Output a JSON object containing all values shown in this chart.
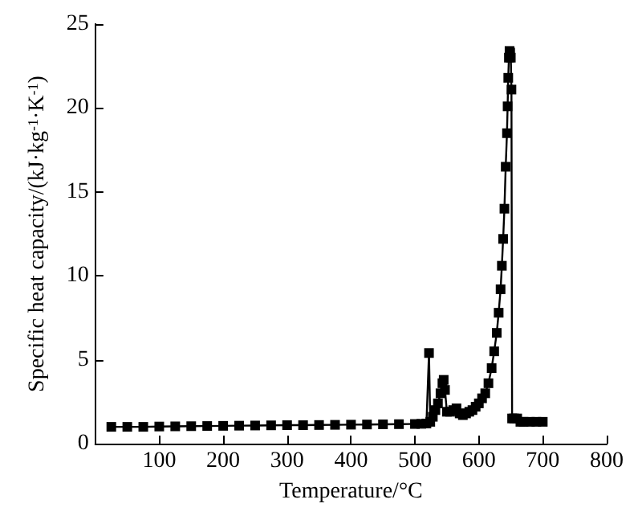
{
  "chart_data": {
    "type": "line",
    "xlabel": "Temperature/°C",
    "ylabel": "Specific heat capacity/(kJ·kg$^{-1}$·K$^{-1}$)",
    "xlim": [
      0,
      800
    ],
    "xticks": [
      100,
      200,
      300,
      400,
      500,
      600,
      700,
      800
    ],
    "ylim": [
      0,
      25
    ],
    "yticks": [
      0,
      5,
      10,
      15,
      20,
      25
    ],
    "grid": false,
    "marker": "square",
    "line_style": "solid",
    "series": [
      {
        "color": "#000000",
        "x": [
          25,
          50,
          75,
          100,
          125,
          150,
          175,
          200,
          225,
          250,
          275,
          300,
          325,
          350,
          375,
          400,
          425,
          450,
          475,
          500,
          510,
          518,
          522,
          524,
          528,
          532,
          536,
          540,
          543,
          545,
          547,
          550,
          555,
          560,
          565,
          570,
          575,
          580,
          585,
          590,
          595,
          600,
          605,
          610,
          615,
          620,
          624,
          628,
          631,
          634,
          636,
          638,
          640,
          642,
          644,
          645,
          646,
          647,
          648,
          649,
          650,
          651,
          652,
          655,
          660,
          665,
          670,
          680,
          690,
          700
        ],
        "values": [
          1.0,
          1.0,
          1.0,
          1.02,
          1.03,
          1.04,
          1.05,
          1.06,
          1.07,
          1.08,
          1.09,
          1.1,
          1.1,
          1.11,
          1.12,
          1.13,
          1.14,
          1.15,
          1.16,
          1.17,
          1.18,
          1.2,
          5.4,
          1.3,
          1.6,
          2.0,
          2.4,
          3.0,
          3.6,
          3.8,
          3.2,
          1.9,
          1.9,
          2.0,
          2.1,
          1.8,
          1.7,
          1.8,
          1.9,
          2.0,
          2.2,
          2.4,
          2.7,
          3.0,
          3.6,
          4.5,
          5.5,
          6.6,
          7.8,
          9.2,
          10.6,
          12.2,
          14.0,
          16.5,
          18.5,
          20.1,
          21.8,
          23.0,
          23.4,
          23.3,
          23.0,
          21.1,
          1.5,
          1.5,
          1.5,
          1.3,
          1.3,
          1.3,
          1.3,
          1.3
        ]
      }
    ]
  }
}
